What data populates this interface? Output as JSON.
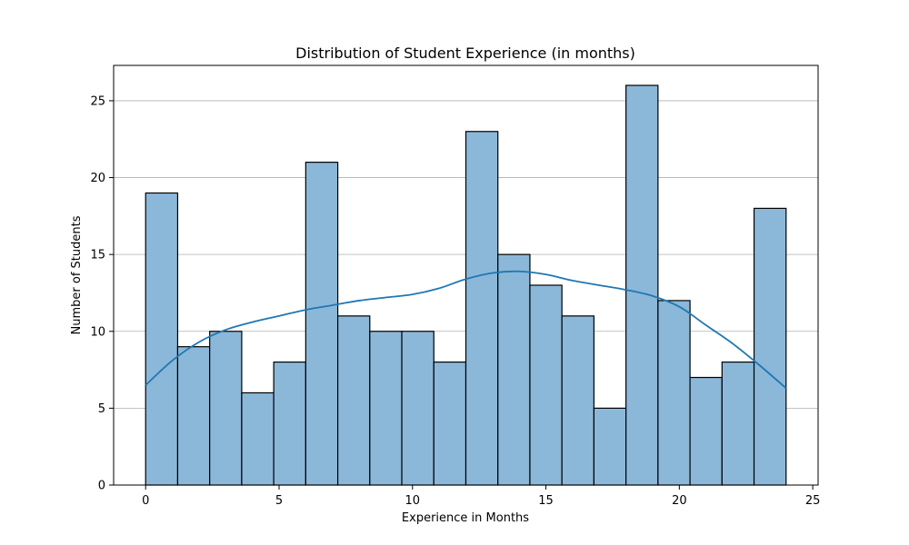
{
  "chart_data": {
    "type": "bar",
    "title": "Distribution of Student Experience (in months)",
    "xlabel": "Experience in Months",
    "ylabel": "Number of Students",
    "xlim": [
      -1.2,
      25.2
    ],
    "ylim": [
      0,
      27.3
    ],
    "xticks": [
      0,
      5,
      10,
      15,
      20,
      25
    ],
    "yticks": [
      0,
      5,
      10,
      15,
      20,
      25
    ],
    "grid": "y",
    "bin_range": [
      0,
      24
    ],
    "bin_count": 20,
    "values": [
      19,
      9,
      10,
      6,
      8,
      21,
      11,
      10,
      10,
      8,
      23,
      15,
      13,
      11,
      5,
      26,
      12,
      7,
      8,
      18
    ],
    "kde": {
      "x": [
        0,
        1,
        2,
        3,
        4,
        5,
        6,
        7,
        8,
        9,
        10,
        11,
        12,
        13,
        14,
        15,
        16,
        17,
        18,
        19,
        20,
        21,
        22,
        23,
        24
      ],
      "y": [
        6.5,
        8.1,
        9.3,
        10.1,
        10.6,
        11.0,
        11.4,
        11.7,
        12.0,
        12.2,
        12.4,
        12.8,
        13.4,
        13.8,
        13.9,
        13.7,
        13.3,
        13.0,
        12.7,
        12.3,
        11.6,
        10.4,
        9.2,
        7.8,
        6.3
      ],
      "color": "#1f77b4"
    },
    "bar_color": "#8bb8d9"
  }
}
